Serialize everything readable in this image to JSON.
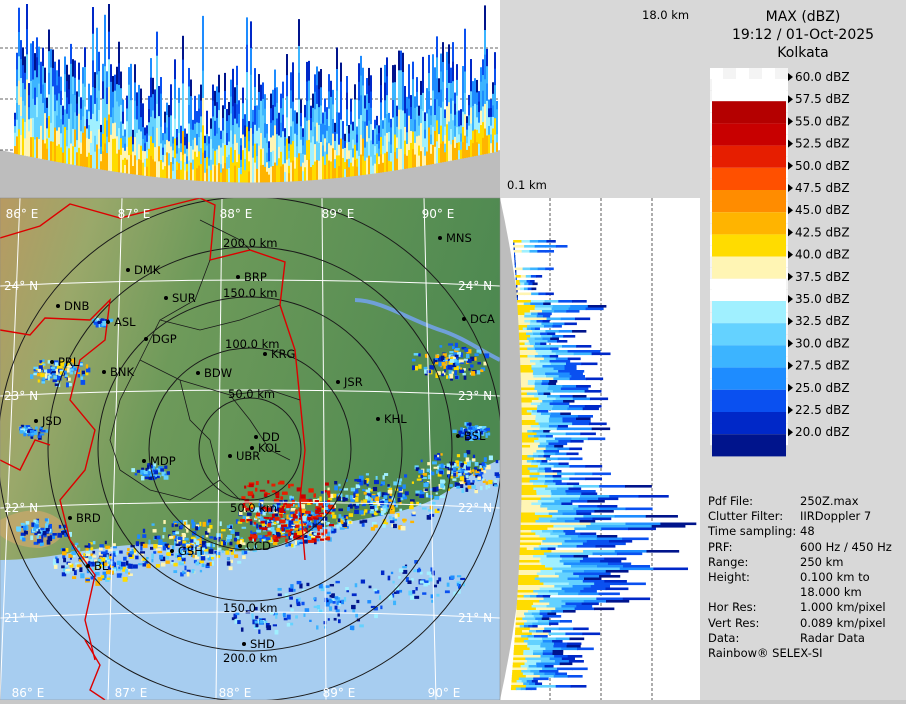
{
  "header": {
    "product": "MAX (dBZ)",
    "datetime": "19:12 / 01-Oct-2025",
    "station": "Kolkata"
  },
  "section_labels": {
    "top_height": "18.0 km",
    "base_height": "0.1 km"
  },
  "legend": {
    "levels": [
      {
        "label": "60.0 dBZ",
        "color": "#ffffff"
      },
      {
        "label": "57.5 dBZ",
        "color": "#b40000"
      },
      {
        "label": "55.0 dBZ",
        "color": "#c80000"
      },
      {
        "label": "52.5 dBZ",
        "color": "#e61e00"
      },
      {
        "label": "50.0 dBZ",
        "color": "#ff5000"
      },
      {
        "label": "47.5 dBZ",
        "color": "#ff8c00"
      },
      {
        "label": "45.0 dBZ",
        "color": "#ffb400"
      },
      {
        "label": "42.5 dBZ",
        "color": "#ffdc00"
      },
      {
        "label": "40.0 dBZ",
        "color": "#fff5b4"
      },
      {
        "label": "37.5 dBZ",
        "color": "#ffffff"
      },
      {
        "label": "35.0 dBZ",
        "color": "#a0f0ff"
      },
      {
        "label": "32.5 dBZ",
        "color": "#64d2ff"
      },
      {
        "label": "30.0 dBZ",
        "color": "#3cb4ff"
      },
      {
        "label": "27.5 dBZ",
        "color": "#1e8cff"
      },
      {
        "label": "25.0 dBZ",
        "color": "#0a50f0"
      },
      {
        "label": "22.5 dBZ",
        "color": "#0028c8"
      },
      {
        "label": "20.0 dBZ",
        "color": "#00148c"
      }
    ]
  },
  "info": [
    {
      "key": "Pdf File:",
      "value": "250Z.max"
    },
    {
      "key": "Clutter Filter:",
      "value": "IIRDoppler 7"
    },
    {
      "key": "Time sampling:",
      "value": "48"
    },
    {
      "key": "PRF:",
      "value": "600 Hz / 450 Hz"
    },
    {
      "key": "Range:",
      "value": "250 km"
    },
    {
      "key": "Height:",
      "value": "0.100 km to"
    },
    {
      "key": "",
      "value": "18.000 km"
    },
    {
      "key": "Hor Res:",
      "value": "1.000 km/pixel"
    },
    {
      "key": "Vert Res:",
      "value": "0.089 km/pixel"
    },
    {
      "key": "Data:",
      "value": "Radar Data"
    }
  ],
  "footer": "Rainbow® SELEX-SI",
  "map": {
    "longitudes": [
      "86° E",
      "87° E",
      "88° E",
      "89° E",
      "90° E"
    ],
    "latitudes": [
      "24° N",
      "23° N",
      "22° N",
      "21° N"
    ],
    "range_rings": [
      "50.0 km",
      "100.0 km",
      "150.0 km",
      "200.0 km"
    ],
    "stations": [
      "MNS",
      "DMK",
      "BRP",
      "DNB",
      "SUR",
      "ASL",
      "DGP",
      "DCA",
      "KRG",
      "PRL",
      "BNK",
      "BDW",
      "JSR",
      "KHL",
      "JSD",
      "DD",
      "KOL",
      "UBR",
      "BSL",
      "MDP",
      "BRD",
      "BL",
      "SHD",
      "GSH",
      "CCD"
    ]
  }
}
